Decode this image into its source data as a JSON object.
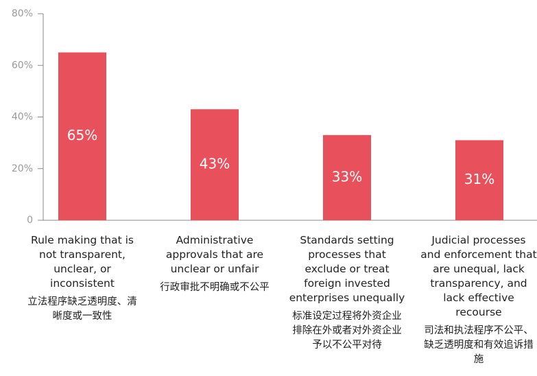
{
  "chart_data": {
    "type": "bar",
    "categories": [
      "Rule making that is not transparent, unclear, or inconsistent",
      "Administrative approvals that are unclear or unfair",
      "Standards setting processes that exclude or treat foreign invested enterprises unequally",
      "Judicial processes and enforcement that are unequal, lack transparency, and lack effective recourse"
    ],
    "categories_zh": [
      "立法程序缺乏透明度、清晰度或一致性",
      "行政审批不明确或不公平",
      "标准设定过程将外资企业排除在外或者对外资企业予以不公平对待",
      "司法和执法程序不公平、缺乏透明度和有效追诉措施"
    ],
    "values": [
      65,
      43,
      33,
      31
    ],
    "value_labels": [
      "65%",
      "43%",
      "33%",
      "31%"
    ],
    "color": "#e8505b",
    "ylim": [
      0,
      80
    ],
    "yticks": [
      0,
      {
        "value": 20,
        "label": "20%"
      },
      {
        "value": 40,
        "label": "40%"
      },
      {
        "value": 60,
        "label": "60%"
      },
      {
        "value": 80,
        "label": "80%"
      }
    ]
  }
}
